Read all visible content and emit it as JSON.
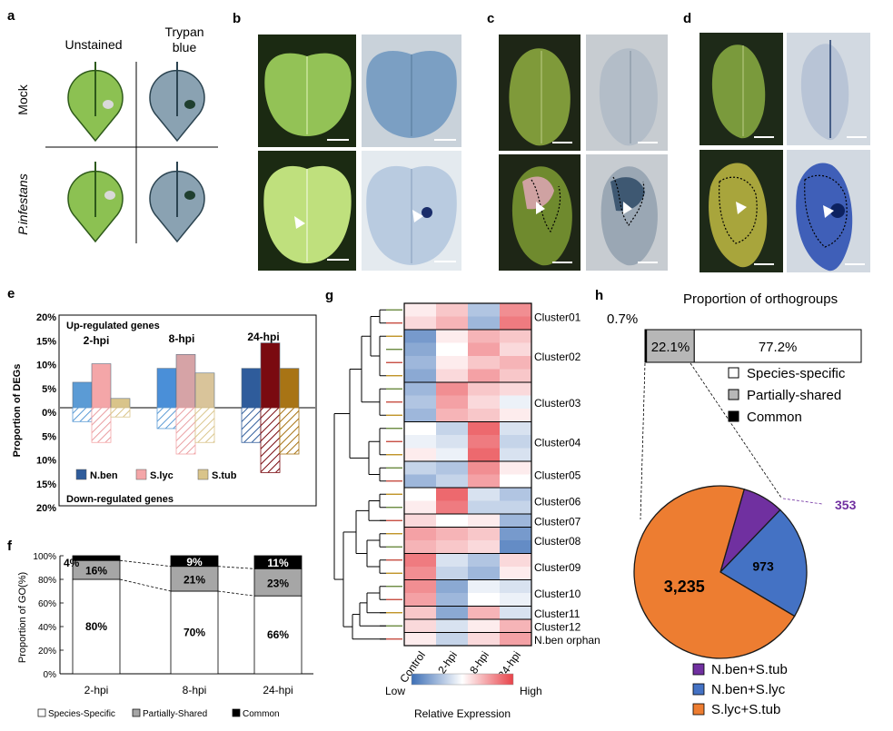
{
  "panel_a": {
    "label": "a",
    "col_unstained": "Unstained",
    "col_trypan_1": "Trypan",
    "col_trypan_2": "blue",
    "row_mock": "Mock",
    "row_pinf": "P.infestans"
  },
  "panel_b": {
    "label": "b"
  },
  "panel_c": {
    "label": "c"
  },
  "panel_d": {
    "label": "d"
  },
  "panel_e": {
    "label": "e",
    "up_title": "Up-regulated genes",
    "down_title": "Down-regulated genes",
    "ylabel": "Proportion of DEGs",
    "legend": [
      "N.ben",
      "S.lyc",
      "S.tub"
    ],
    "colors": {
      "nben": "#5b9bd5",
      "slyc": "#f4a6a8",
      "stub": "#d9c48a",
      "nben_mid": "#4a8fd8",
      "slyc_mid": "#d6a3a6",
      "stub_mid": "#d9c49a",
      "nben_dark": "#2f5c9b",
      "slyc_dark": "#7a0a10",
      "stub_dark": "#a87415"
    }
  },
  "panel_f": {
    "label": "f",
    "ylabel": "Proportion of GO(%)",
    "legend": [
      "Species-Specific",
      "Partially-Shared",
      "Common"
    ]
  },
  "panel_g": {
    "label": "g",
    "clusters": [
      "Cluster01",
      "Cluster02",
      "Cluster03",
      "Cluster04",
      "Cluster05",
      "Cluster06",
      "Cluster07",
      "Cluster08",
      "Cluster09",
      "Cluster10",
      "Cluster11",
      "Cluster12",
      "N.ben orphan"
    ],
    "columns": [
      "Control",
      "2-hpi",
      "8-hpi",
      "24-hpi"
    ],
    "scale_low": "Low",
    "scale_high": "High",
    "scale_title": "Relative Expression"
  },
  "panel_h": {
    "label": "h",
    "title": "Proportion of orthogroups",
    "common_pct": "0.7%",
    "legend_bar": [
      "Species-specific",
      "Partially-shared",
      "Common"
    ],
    "legend_pie": [
      "N.ben+S.tub",
      "N.ben+S.lyc",
      "S.lyc+S.tub"
    ],
    "pie_colors": [
      "#7030a0",
      "#4472c4",
      "#ed7d31"
    ]
  },
  "chart_data": [
    {
      "type": "bar",
      "title": "",
      "ylabel": "Proportion of DEGs",
      "categories": [
        "2-hpi",
        "8-hpi",
        "24-hpi"
      ],
      "series": [
        {
          "name": "N.ben",
          "up": [
            5.5,
            8.5,
            8.5
          ],
          "down": [
            3,
            4.5,
            7.5
          ]
        },
        {
          "name": "S.lyc",
          "up": [
            9.5,
            11.5,
            14
          ],
          "down": [
            7.5,
            10,
            14
          ]
        },
        {
          "name": "S.tub",
          "up": [
            2,
            7.5,
            8.5
          ],
          "down": [
            2,
            7.5,
            10
          ]
        }
      ],
      "ylim": [
        -20,
        20
      ],
      "yticks": [
        "20%",
        "15%",
        "10%",
        "5%",
        "0%",
        "5%",
        "10%",
        "15%",
        "20%"
      ]
    },
    {
      "type": "bar",
      "stacked": true,
      "ylabel": "Proportion of GO(%)",
      "categories": [
        "2-hpi",
        "8-hpi",
        "24-hpi"
      ],
      "series": [
        {
          "name": "Species-Specific",
          "values": [
            80,
            70,
            66
          ],
          "labels": [
            "80%",
            "70%",
            "66%"
          ]
        },
        {
          "name": "Partially-Shared",
          "values": [
            16,
            21,
            23
          ],
          "labels": [
            "16%",
            "21%",
            "23%"
          ]
        },
        {
          "name": "Common",
          "values": [
            4,
            9,
            11
          ],
          "labels": [
            "4%",
            "9%",
            "11%"
          ]
        }
      ],
      "yticks": [
        "0%",
        "20%",
        "40%",
        "60%",
        "80%",
        "100%"
      ],
      "ylim": [
        0,
        100
      ]
    },
    {
      "type": "heatmap",
      "rows": 26,
      "columns": [
        "Control",
        "2-hpi",
        "8-hpi",
        "24-hpi"
      ],
      "values": [
        [
          0.1,
          0.3,
          -0.4,
          0.6
        ],
        [
          0.2,
          0.4,
          -0.5,
          0.7
        ],
        [
          -0.7,
          0.1,
          0.4,
          0.3
        ],
        [
          -0.6,
          0.0,
          0.5,
          0.2
        ],
        [
          -0.5,
          0.1,
          0.3,
          0.4
        ],
        [
          -0.6,
          0.2,
          0.5,
          0.3
        ],
        [
          -0.5,
          0.6,
          0.3,
          0.2
        ],
        [
          -0.4,
          0.5,
          0.2,
          -0.1
        ],
        [
          -0.5,
          0.4,
          0.3,
          0.1
        ],
        [
          0.0,
          -0.3,
          0.8,
          -0.2
        ],
        [
          -0.1,
          -0.2,
          0.7,
          -0.3
        ],
        [
          0.1,
          -0.1,
          0.8,
          -0.2
        ],
        [
          -0.3,
          -0.4,
          0.6,
          0.1
        ],
        [
          -0.5,
          -0.3,
          0.5,
          0.0
        ],
        [
          0.0,
          0.8,
          -0.2,
          -0.4
        ],
        [
          0.1,
          0.7,
          -0.3,
          -0.3
        ],
        [
          0.2,
          0.0,
          0.1,
          -0.5
        ],
        [
          0.5,
          0.4,
          0.3,
          -0.7
        ],
        [
          0.4,
          0.3,
          0.2,
          -0.8
        ],
        [
          0.7,
          -0.2,
          -0.4,
          0.2
        ],
        [
          0.6,
          -0.3,
          -0.5,
          0.1
        ],
        [
          0.6,
          -0.6,
          -0.1,
          -0.2
        ],
        [
          0.5,
          -0.5,
          0.0,
          -0.1
        ],
        [
          0.3,
          -0.6,
          0.4,
          -0.2
        ],
        [
          0.2,
          -0.2,
          0.1,
          0.4
        ],
        [
          0.1,
          -0.3,
          0.2,
          0.5
        ]
      ],
      "cluster_row_counts": [
        2,
        4,
        3,
        3,
        2,
        2,
        1,
        2,
        2,
        2,
        1,
        1,
        1
      ]
    },
    {
      "type": "bar",
      "stacked": true,
      "orientation": "horizontal",
      "series": [
        {
          "name": "Common",
          "values": [
            0.7
          ],
          "labels": [
            "0.7%"
          ]
        },
        {
          "name": "Partially-shared",
          "values": [
            22.1
          ],
          "labels": [
            "22.1%"
          ]
        },
        {
          "name": "Species-specific",
          "values": [
            77.2
          ],
          "labels": [
            "77.2%"
          ]
        }
      ]
    },
    {
      "type": "pie",
      "categories": [
        "N.ben+S.tub",
        "N.ben+S.lyc",
        "S.lyc+S.tub"
      ],
      "values": [
        353,
        973,
        3235
      ],
      "labels": [
        "353",
        "973",
        "3,235"
      ]
    }
  ]
}
